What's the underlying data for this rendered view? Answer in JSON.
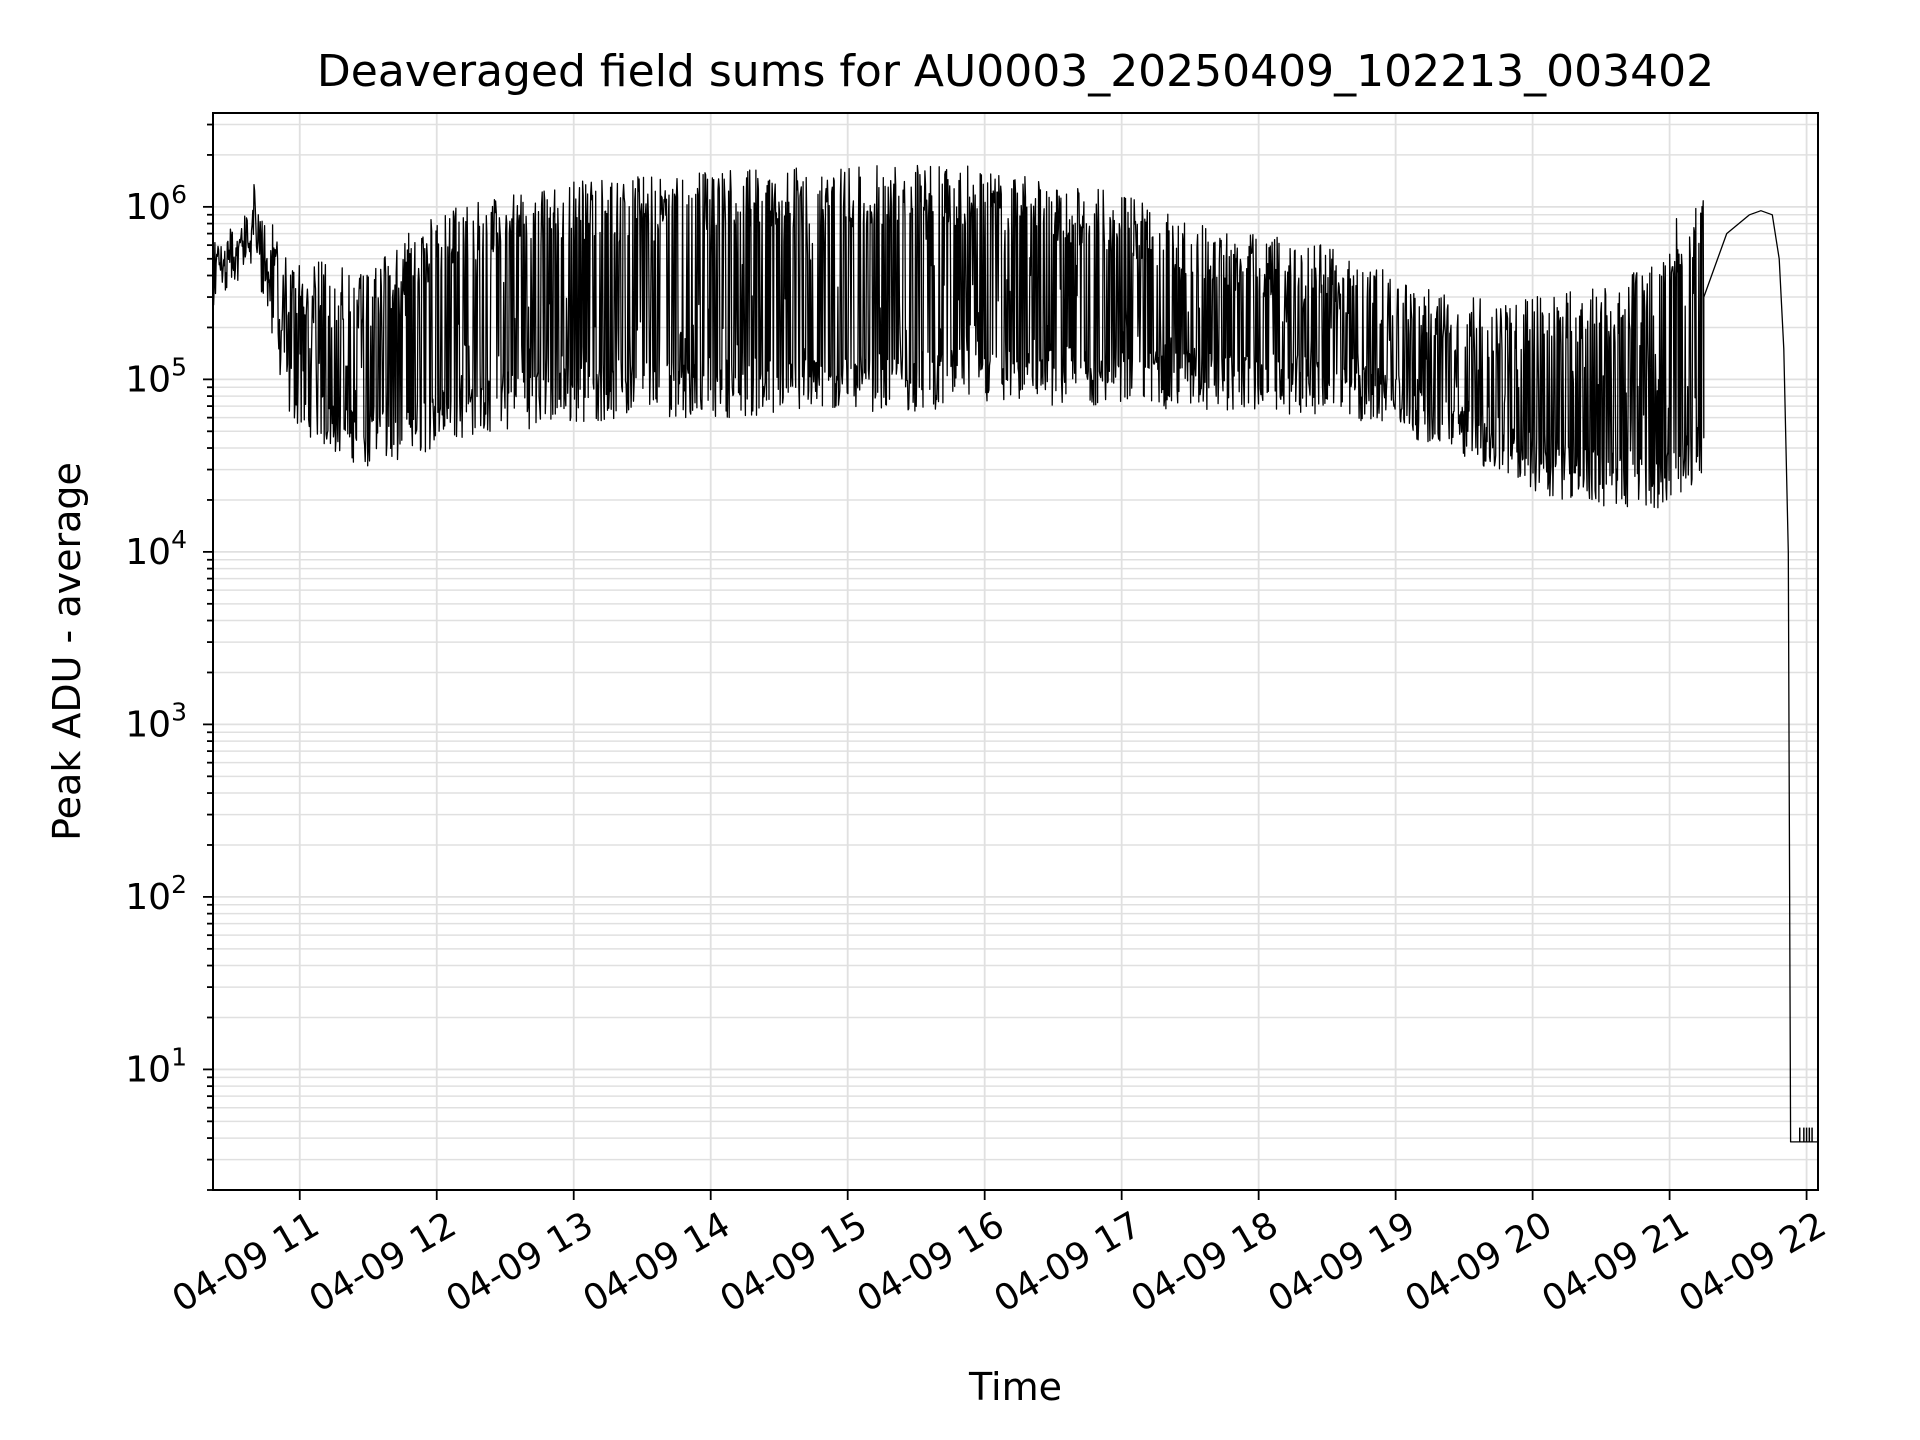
{
  "chart_data": {
    "type": "line",
    "title": "Deaveraged field sums for AU0003_20250409_102213_003402",
    "xlabel": "Time",
    "ylabel": "Peak ADU - average",
    "yscale": "log",
    "ylim": [
      2,
      3500000
    ],
    "xlim": [
      "04-09 10:22",
      "04-09 22:05"
    ],
    "grid": true,
    "legend": "none",
    "line_color": "#000000",
    "x_ticks": [
      "04-09 11",
      "04-09 12",
      "04-09 13",
      "04-09 14",
      "04-09 15",
      "04-09 16",
      "04-09 17",
      "04-09 18",
      "04-09 19",
      "04-09 20",
      "04-09 21",
      "04-09 22"
    ],
    "y_ticks": [
      {
        "base": "10",
        "exp": "1",
        "value": 10
      },
      {
        "base": "10",
        "exp": "2",
        "value": 100
      },
      {
        "base": "10",
        "exp": "3",
        "value": 1000
      },
      {
        "base": "10",
        "exp": "4",
        "value": 10000
      },
      {
        "base": "10",
        "exp": "5",
        "value": 100000
      },
      {
        "base": "10",
        "exp": "6",
        "value": 1000000
      }
    ],
    "series": [
      {
        "envelope": {
          "x": [
            "04-09 10:22",
            "04-09 10:30",
            "04-09 10:35",
            "04-09 10:40",
            "04-09 10:45",
            "04-09 10:55",
            "04-09 11:10",
            "04-09 11:30",
            "04-09 11:50",
            "04-09 12:10",
            "04-09 12:30",
            "04-09 13:00",
            "04-09 13:30",
            "04-09 14:00",
            "04-09 14:30",
            "04-09 15:00",
            "04-09 15:30",
            "04-09 16:00",
            "04-09 16:30",
            "04-09 17:00",
            "04-09 17:30",
            "04-09 18:00",
            "04-09 18:30",
            "04-09 19:00",
            "04-09 19:30",
            "04-09 20:00",
            "04-09 20:30",
            "04-09 20:55",
            "04-09 21:05",
            "04-09 21:15"
          ],
          "low": [
            300000,
            350000,
            400000,
            500000,
            250000,
            60000,
            40000,
            30000,
            35000,
            45000,
            50000,
            55000,
            60000,
            60000,
            60000,
            65000,
            65000,
            70000,
            70000,
            70000,
            65000,
            65000,
            60000,
            50000,
            35000,
            22000,
            18000,
            18000,
            20000,
            30000
          ],
          "high": [
            600000,
            700000,
            900000,
            1500000,
            1000000,
            500000,
            500000,
            400000,
            800000,
            1000000,
            1200000,
            1400000,
            1500000,
            1600000,
            1700000,
            1700000,
            1800000,
            1700000,
            1400000,
            1200000,
            800000,
            700000,
            600000,
            400000,
            300000,
            300000,
            350000,
            500000,
            1000000,
            1200000
          ]
        },
        "x": [
          "04-09 21:15",
          "04-09 21:25",
          "04-09 21:35",
          "04-09 21:40",
          "04-09 21:45",
          "04-09 21:48",
          "04-09 21:50",
          "04-09 21:52",
          "04-09 21:53",
          "04-09 21:55",
          "04-09 22:05"
        ],
        "y": [
          300000,
          700000,
          900000,
          950000,
          900000,
          500000,
          150000,
          10000,
          3.8,
          3.8,
          3.8
        ]
      }
    ]
  }
}
